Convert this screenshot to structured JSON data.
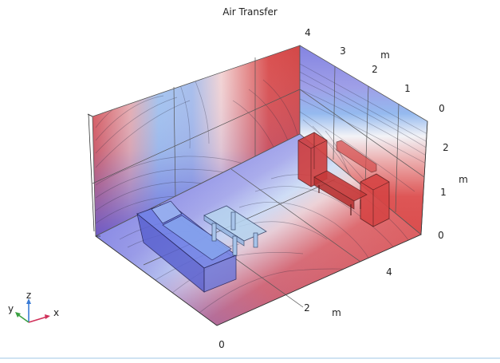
{
  "plot": {
    "title": "Air Transfer",
    "axes": {
      "x": {
        "unit": "m",
        "ticks": [
          "0",
          "2",
          "4"
        ]
      },
      "y": {
        "unit": "m",
        "ticks": [
          "4",
          "3",
          "2",
          "1",
          "0"
        ]
      },
      "z": {
        "unit": "m",
        "ticks": [
          "2",
          "1",
          "0"
        ]
      }
    },
    "triad": {
      "x": "x",
      "y": "y",
      "z": "z"
    }
  },
  "colors": {
    "high": "#d63a3a",
    "low": "#5a5ad8",
    "mid": "#f4f4f8",
    "sofa": "#6f86e8",
    "cabinet": "#d84848",
    "table": "#a8c8e8"
  },
  "objects": {
    "sofa": "sofa-object",
    "coffee_table": "coffee-table-object",
    "cabinets": "cabinet-objects",
    "bench": "bench-object"
  }
}
